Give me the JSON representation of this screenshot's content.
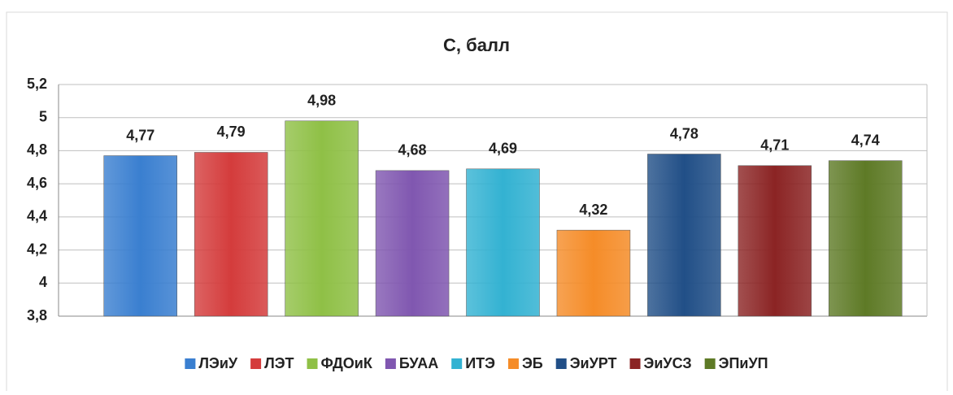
{
  "chart_data": {
    "type": "bar",
    "title": "С, балл",
    "categories": [
      "ЛЭиУ",
      "ЛЭТ",
      "ФДОиК",
      "БУАА",
      "ИТЭ",
      "ЭБ",
      "ЭиУРТ",
      "ЭиУСЗ",
      "ЭПиУП"
    ],
    "values": [
      4.77,
      4.79,
      4.98,
      4.68,
      4.69,
      4.32,
      4.78,
      4.71,
      4.74
    ],
    "value_labels": [
      "4,77",
      "4,79",
      "4,98",
      "4,68",
      "4,69",
      "4,32",
      "4,78",
      "4,71",
      "4,74"
    ],
    "colors": [
      "#3a7fd0",
      "#d43c3c",
      "#8fc046",
      "#8057b0",
      "#33b2d2",
      "#f58c28",
      "#214f87",
      "#8b2424",
      "#5e7a26"
    ],
    "ylim": [
      3.8,
      5.2
    ],
    "yticks": [
      {
        "value": 3.8,
        "label": "3,8"
      },
      4,
      {
        "value": 4.2,
        "label": "4,2"
      },
      {
        "value": 4.4,
        "label": "4,4"
      },
      {
        "value": 4.6,
        "label": "4,6"
      },
      {
        "value": 4.8,
        "label": "4,8"
      },
      5,
      {
        "value": 5.2,
        "label": "5,2"
      }
    ],
    "grid": true,
    "legend": "bottom"
  }
}
